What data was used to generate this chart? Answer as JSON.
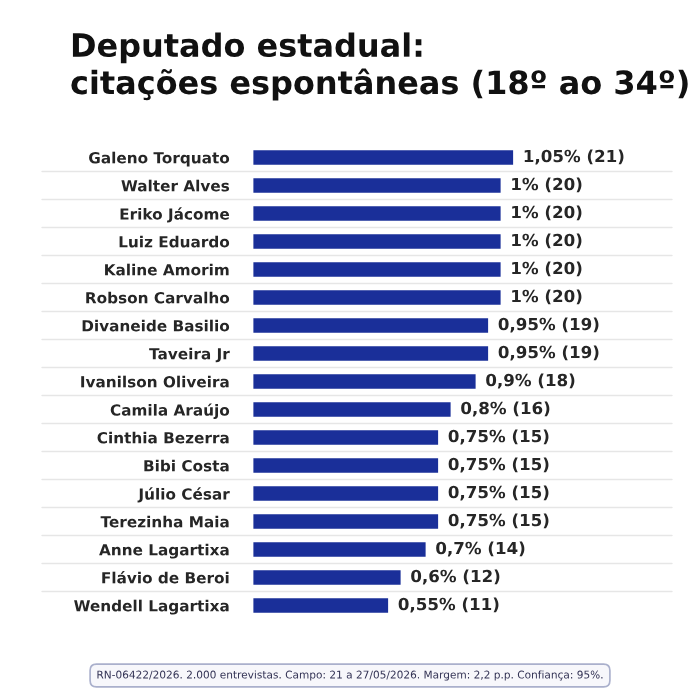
{
  "chart_data": {
    "type": "bar",
    "orientation": "horizontal",
    "title": "Deputado estadual:\ncitações espontâneas (18º ao 34º)",
    "categories": [
      "Galeno Torquato",
      "Walter Alves",
      "Eriko Jácome",
      "Luiz Eduardo",
      "Kaline Amorim",
      "Robson Carvalho",
      "Divaneide Basilio",
      "Taveira Jr",
      "Ivanilson Oliveira",
      "Camila Araújo",
      "Cinthia Bezerra",
      "Bibi Costa",
      "Júlio César",
      "Terezinha Maia",
      "Anne Lagartixa",
      "Flávio de Beroi",
      "Wendell Lagartixa"
    ],
    "values": [
      1.05,
      1,
      1,
      1,
      1,
      1,
      0.95,
      0.95,
      0.9,
      0.8,
      0.75,
      0.75,
      0.75,
      0.75,
      0.7,
      0.6,
      0.55
    ],
    "value_labels": [
      "1,05% (21)",
      "1% (20)",
      "1% (20)",
      "1% (20)",
      "1% (20)",
      "1% (20)",
      "0,95% (19)",
      "0,95% (19)",
      "0,9% (18)",
      "0,8% (16)",
      "0,75% (15)",
      "0,75% (15)",
      "0,75% (15)",
      "0,75% (15)",
      "0,7% (14)",
      "0,6% (12)",
      "0,55% (11)"
    ],
    "color": "#1a2f99",
    "annotations": [
      "RN-06422/2026. 2.000 entrevistas. Campo: 21 a 27/05/2026. Margem: 2,2 p.p. Confiança: 95%."
    ]
  }
}
